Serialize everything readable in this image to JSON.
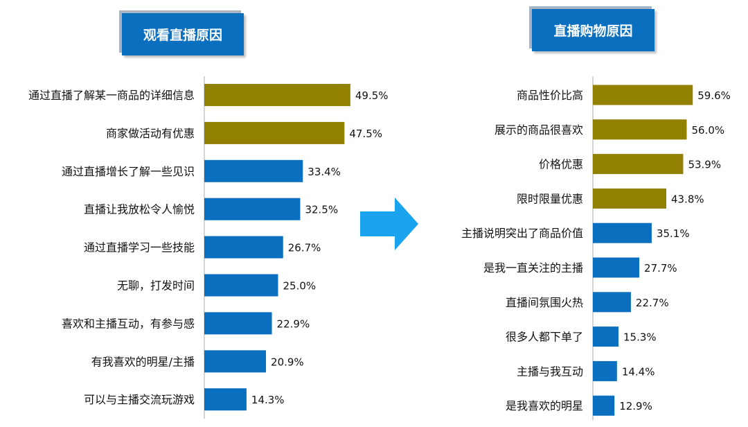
{
  "colors": {
    "highlight": "#928000",
    "normal": "#0b6fc0",
    "title_bg": "#0b6fc0",
    "arrow": "#1aa3ef"
  },
  "arrow_icon": "right-arrow-icon",
  "chart_data": [
    {
      "type": "bar",
      "orientation": "horizontal",
      "title": "观看直播原因",
      "categories": [
        "通过直播了解某一商品的详细信息",
        "商家做活动有优惠",
        "通过直播增长了解一些见识",
        "直播让我放松令人愉悦",
        "通过直播学习一些技能",
        "无聊，打发时间",
        "喜欢和主播互动，有参与感",
        "有我喜欢的明星/主播",
        "可以与主播交流玩游戏"
      ],
      "values": [
        49.5,
        47.5,
        33.4,
        32.5,
        26.7,
        25.0,
        22.9,
        20.9,
        14.3
      ],
      "labels": [
        "49.5%",
        "47.5%",
        "33.4%",
        "32.5%",
        "26.7%",
        "25.0%",
        "22.9%",
        "20.9%",
        "14.3%"
      ],
      "highlight_count": 2,
      "xlim": [
        0,
        60
      ],
      "grid": false
    },
    {
      "type": "bar",
      "orientation": "horizontal",
      "title": "直播购物原因",
      "categories": [
        "商品性价比高",
        "展示的商品很喜欢",
        "价格优惠",
        "限时限量优惠",
        "主播说明突出了商品价值",
        "是我一直关注的主播",
        "直播间氛围火热",
        "很多人都下单了",
        "主播与我互动",
        "是我喜欢的明星"
      ],
      "values": [
        59.6,
        56.0,
        53.9,
        43.8,
        35.1,
        27.7,
        22.7,
        15.3,
        14.4,
        12.9
      ],
      "labels": [
        "59.6%",
        "56.0%",
        "53.9%",
        "43.8%",
        "35.1%",
        "27.7%",
        "22.7%",
        "15.3%",
        "14.4%",
        "12.9%"
      ],
      "highlight_count": 4,
      "xlim": [
        0,
        60
      ],
      "grid": false
    }
  ]
}
